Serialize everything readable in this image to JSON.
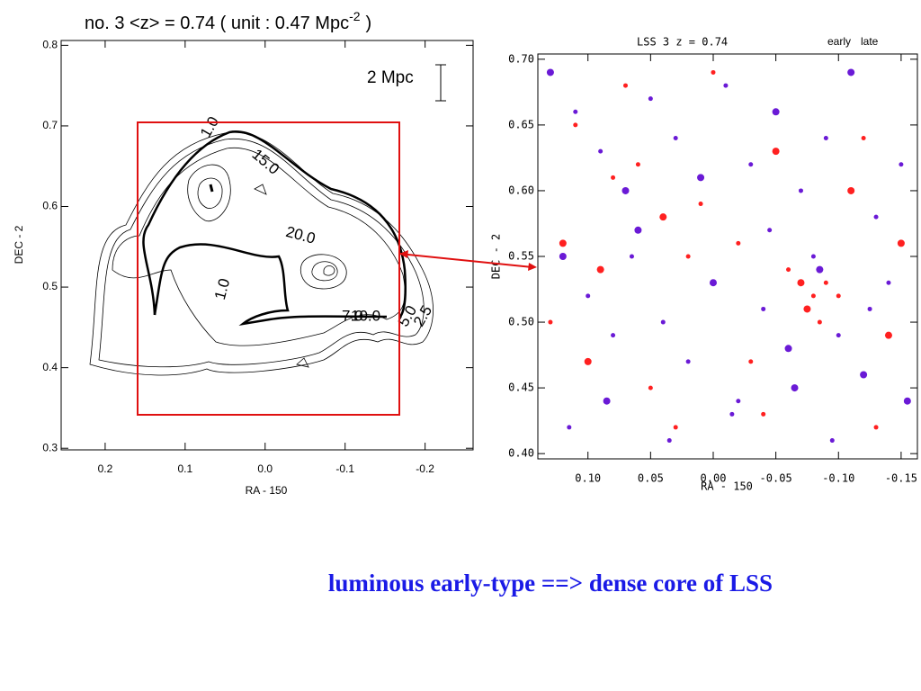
{
  "chart_data": [
    {
      "type": "contour",
      "title": "no. 3  <z> = 0.74  ( unit : 0.47 Mpc",
      "title_superscript": "-2",
      "title_end": ")",
      "x_label": "RA - 150",
      "y_label": "DEC - 2",
      "scale_label": "2 Mpc",
      "contour_labels": [
        "1.0",
        "15.0",
        "20.0",
        "1.0",
        "7.0",
        "10.0",
        "5.0",
        "2.5"
      ],
      "xlim": [
        0.255,
        -0.26
      ],
      "ylim": [
        0.298,
        0.806
      ],
      "xticks": [
        0.2,
        0.1,
        {
          "value": 0,
          "label": "0.0"
        },
        -0.1,
        -0.2
      ],
      "yticks": [
        0.3,
        0.4,
        0.5,
        0.6,
        0.7,
        0.8
      ]
    },
    {
      "type": "scatter",
      "title": "LSS  3 z =  0.74",
      "x_label": "RA - 150",
      "y_label": "DEC - 2",
      "xlim": [
        0.14,
        -0.163
      ],
      "ylim": [
        0.396,
        0.704
      ],
      "xticks": [
        {
          "value": 0.1,
          "label": "0.10"
        },
        0.05,
        {
          "value": 0,
          "label": "0.00"
        },
        -0.05,
        {
          "value": -0.1,
          "label": "-0.10"
        },
        -0.15
      ],
      "yticks": [
        {
          "value": 0.4,
          "label": "0.40"
        },
        0.45,
        {
          "value": 0.5,
          "label": "0.50"
        },
        0.55,
        {
          "value": 0.6,
          "label": "0.60"
        },
        0.65,
        {
          "value": 0.7,
          "label": "0.70"
        }
      ],
      "series": [
        {
          "name": "early",
          "color": "#ff2020",
          "x": [
            0.12,
            0.08,
            0.06,
            0.04,
            0.02,
            -0.02,
            -0.07,
            -0.08,
            -0.09,
            -0.075,
            -0.1,
            -0.06,
            0.1,
            0.13,
            0.05,
            -0.11,
            -0.12,
            0.0,
            -0.05,
            0.07,
            -0.13,
            -0.14,
            0.03,
            -0.03,
            0.09,
            -0.04,
            0.11,
            -0.15,
            0.01,
            -0.085
          ],
          "y": [
            0.56,
            0.61,
            0.62,
            0.58,
            0.55,
            0.56,
            0.53,
            0.52,
            0.53,
            0.51,
            0.52,
            0.54,
            0.47,
            0.5,
            0.45,
            0.6,
            0.64,
            0.69,
            0.63,
            0.68,
            0.42,
            0.49,
            0.42,
            0.47,
            0.54,
            0.43,
            0.65,
            0.56,
            0.59,
            0.5
          ]
        },
        {
          "name": "late",
          "color": "#6a1ad6",
          "x": [
            0.13,
            0.11,
            0.09,
            0.07,
            0.05,
            0.03,
            0.01,
            -0.01,
            -0.03,
            -0.05,
            -0.07,
            -0.09,
            -0.11,
            -0.13,
            -0.15,
            0.12,
            0.1,
            0.08,
            0.06,
            0.04,
            0.02,
            0.0,
            -0.02,
            -0.04,
            -0.06,
            -0.08,
            -0.1,
            -0.12,
            -0.14,
            0.115,
            0.085,
            0.035,
            -0.015,
            -0.065,
            -0.095,
            -0.125,
            -0.155,
            0.065,
            -0.045,
            -0.085
          ],
          "y": [
            0.69,
            0.66,
            0.63,
            0.6,
            0.67,
            0.64,
            0.61,
            0.68,
            0.62,
            0.66,
            0.6,
            0.64,
            0.69,
            0.58,
            0.62,
            0.55,
            0.52,
            0.49,
            0.57,
            0.5,
            0.47,
            0.53,
            0.44,
            0.51,
            0.48,
            0.55,
            0.49,
            0.46,
            0.53,
            0.42,
            0.44,
            0.41,
            0.43,
            0.45,
            0.41,
            0.51,
            0.44,
            0.55,
            0.57,
            0.54
          ]
        }
      ]
    }
  ],
  "caption": "luminous early-type ==> dense core of LSS"
}
